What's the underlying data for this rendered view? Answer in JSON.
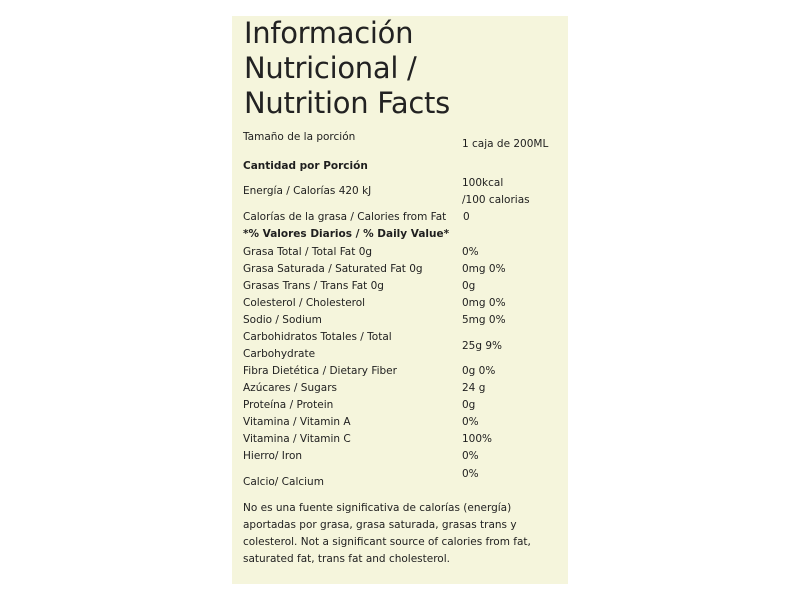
{
  "title": [
    "Información",
    "Nutricional /",
    "Nutrition Facts"
  ],
  "serving": {
    "label": "Tamaño de la porción",
    "value": "1 caja de 200ML"
  },
  "amount_header": "Cantidad por Porción",
  "energy": {
    "label": "Energía / Calorías 420 kJ",
    "value_line1": "100kcal",
    "value_line2": "/100 calorias"
  },
  "fat_calories": {
    "label": "Calorías de la grasa / Calories from Fat",
    "value": "0"
  },
  "daily_value_header": "*% Valores Diarios / % Daily Value*",
  "nutrients": [
    {
      "label": "Grasa Total / Total Fat 0g",
      "value": "0%"
    },
    {
      "label": "Grasa Saturada / Saturated Fat 0g",
      "value": "0mg 0%"
    },
    {
      "label": "Grasas Trans / Trans Fat 0g",
      "value": "0g"
    },
    {
      "label": "Colesterol / Cholesterol",
      "value": "0mg 0%"
    },
    {
      "label": "Sodio / Sodium",
      "value": "5mg 0%"
    }
  ],
  "carbs": {
    "label_line1": "Carbohidratos Totales / Total",
    "label_line2": "Carbohydrate",
    "value": "25g 9%"
  },
  "nutrients2": [
    {
      "label": "Fibra Dietética / Dietary Fiber",
      "value": "0g 0%"
    },
    {
      "label": "Azúcares / Sugars",
      "value": "24 g"
    },
    {
      "label": "Proteína / Protein",
      "value": "0g"
    },
    {
      "label": "Vitamina / Vitamin A",
      "value": "0%"
    },
    {
      "label": "Vitamina / Vitamin C",
      "value": "100%"
    },
    {
      "label": "Hierro/ Iron",
      "value": "0%"
    }
  ],
  "calcium": {
    "label": "Calcio/ Calcium",
    "value": "0%"
  },
  "footnote": [
    "No es una fuente significativa de calorías (energía)",
    "aportadas por grasa, grasa saturada, grasas trans y",
    "colesterol. Not a significant source of calories from fat,",
    "saturated fat, trans fat and cholesterol."
  ]
}
